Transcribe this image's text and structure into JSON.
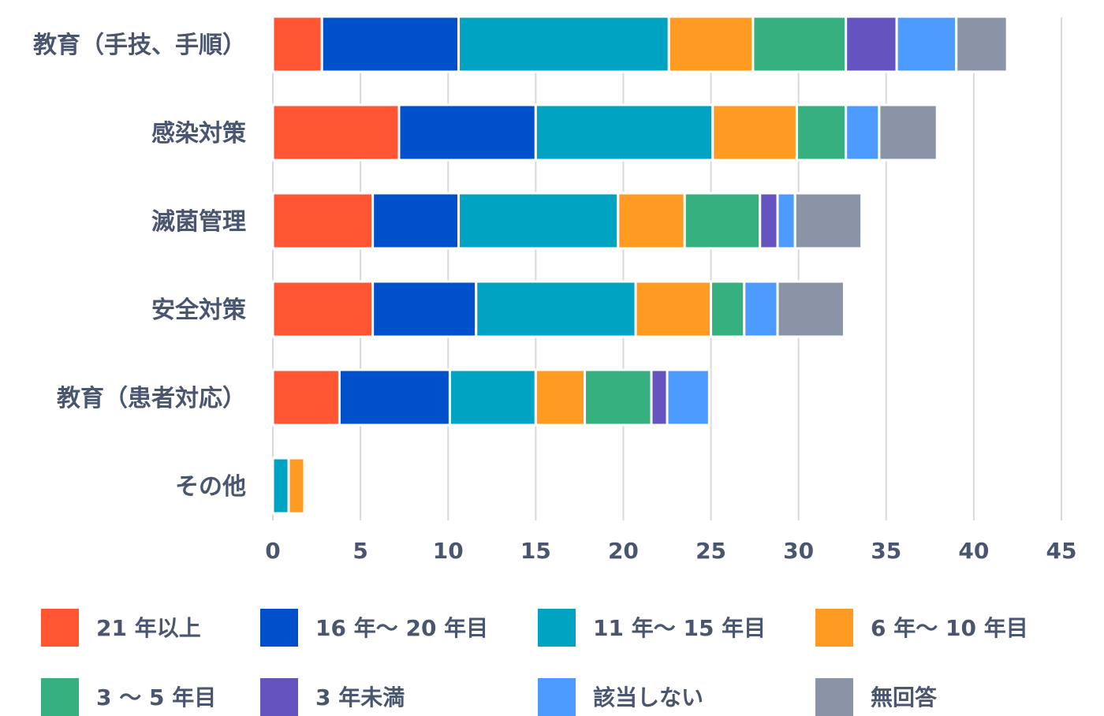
{
  "chart_data": {
    "type": "bar",
    "orientation": "horizontal",
    "stacked": true,
    "title": "",
    "xlabel": "",
    "ylabel": "",
    "xlim": [
      0,
      45
    ],
    "x_ticks": [
      0,
      5,
      10,
      15,
      20,
      25,
      30,
      35,
      40,
      45
    ],
    "grid": "vertical",
    "legend_position": "bottom",
    "categories": [
      "教育（手技、手順）",
      "感染対策",
      "滅菌管理",
      "安全対策",
      "教育（患者対応）",
      "その他"
    ],
    "series": [
      {
        "name": "21 年以上",
        "color": "#ff5533",
        "values": [
          2.8,
          7.2,
          5.7,
          5.7,
          3.8,
          0
        ]
      },
      {
        "name": "16 年～ 20 年目",
        "color": "#0050cc",
        "values": [
          7.8,
          7.8,
          4.9,
          5.9,
          6.3,
          0
        ]
      },
      {
        "name": "11 年～ 15 年目",
        "color": "#00a3c2",
        "values": [
          12.0,
          10.1,
          9.1,
          9.1,
          4.9,
          0.9
        ]
      },
      {
        "name": "6 年～ 10 年目",
        "color": "#ff9b22",
        "values": [
          4.8,
          4.8,
          3.8,
          4.3,
          2.8,
          0.9
        ]
      },
      {
        "name": "3 ～ 5 年目",
        "color": "#36b07e",
        "values": [
          5.3,
          2.8,
          4.3,
          1.9,
          3.8,
          0
        ]
      },
      {
        "name": "3 年未満",
        "color": "#6553c0",
        "values": [
          2.9,
          0,
          1.0,
          0,
          0.9,
          0
        ]
      },
      {
        "name": "該当しない",
        "color": "#4d9bff",
        "values": [
          3.4,
          1.9,
          1.0,
          1.9,
          2.4,
          0
        ]
      },
      {
        "name": "無回答",
        "color": "#8a94a6",
        "values": [
          2.9,
          3.3,
          3.8,
          3.8,
          0,
          0
        ]
      }
    ]
  }
}
